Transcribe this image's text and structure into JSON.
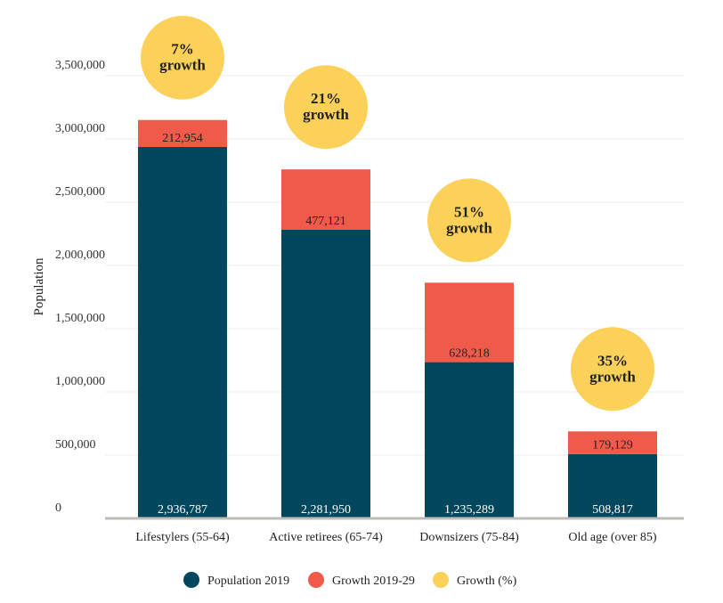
{
  "chart_data": {
    "type": "bar",
    "stacked": true,
    "ylabel": "Population",
    "xlabel": "",
    "ylim": [
      0,
      3700000
    ],
    "yticks": [
      0,
      500000,
      1000000,
      1500000,
      2000000,
      2500000,
      3000000,
      3500000
    ],
    "ytick_labels": [
      "0",
      "500,000",
      "1,000,000",
      "1,500,000",
      "2,000,000",
      "2,500,000",
      "3,000,000",
      "3,500,000"
    ],
    "categories": [
      "Lifestylers (55-64)",
      "Active retirees (65-74)",
      "Downsizers (75-84)",
      "Old age (over 85)"
    ],
    "series": [
      {
        "name": "Population 2019",
        "color": "#02475e",
        "values": [
          2936787,
          2281950,
          1235289,
          508817
        ],
        "labels": [
          "2,936,787",
          "2,281,950",
          "1,235,289",
          "508,817"
        ]
      },
      {
        "name": "Growth 2019-29",
        "color": "#f05a4a",
        "values": [
          212954,
          477121,
          628218,
          179129
        ],
        "labels": [
          "212,954",
          "477,121",
          "628,218",
          "179,129"
        ]
      },
      {
        "name": "Growth (%)",
        "color": "#fcd15a",
        "values": [
          7,
          21,
          51,
          35
        ],
        "labels": [
          "7%",
          "21%",
          "51%",
          "35%"
        ],
        "sublabel": "growth"
      }
    ],
    "grid": true,
    "legend_position": "bottom"
  }
}
